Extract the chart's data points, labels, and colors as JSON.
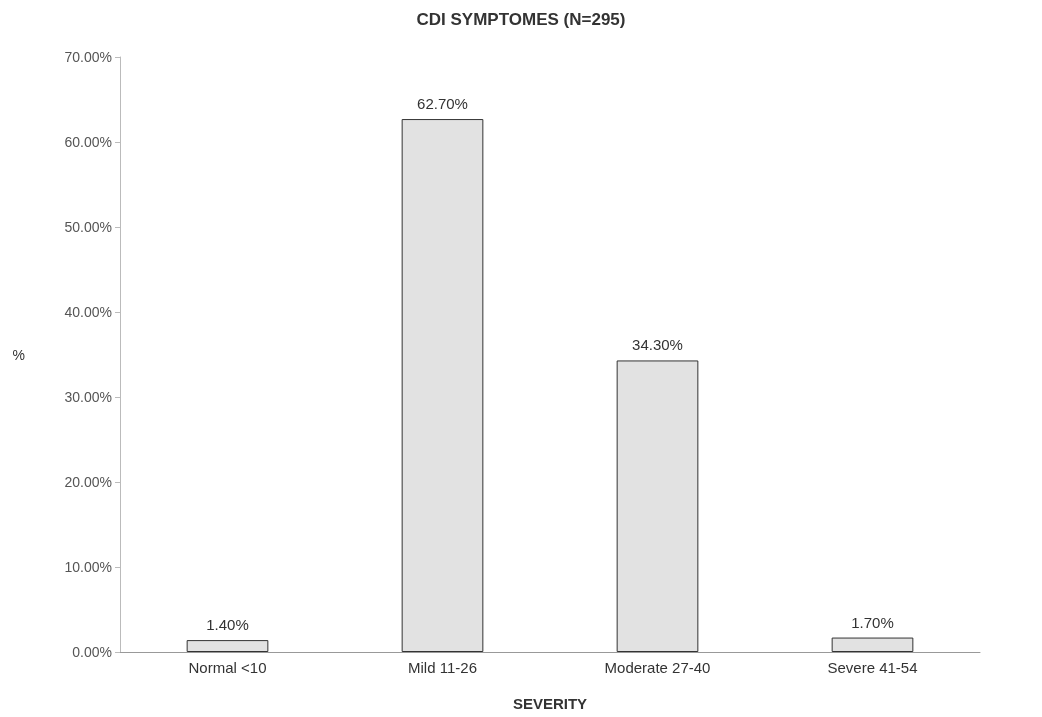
{
  "chart_data": {
    "type": "bar",
    "title": "CDI SYMPTOMES (N=295)",
    "xlabel": "SEVERITY",
    "ylabel": "%",
    "categories": [
      "Normal <10",
      "Mild 11-26",
      "Moderate 27-40",
      "Severe 41-54"
    ],
    "values": [
      1.4,
      62.7,
      34.3,
      1.7
    ],
    "color": "#e2e2e2",
    "value_labels": [
      "1.40%",
      "62.70%",
      "34.30%",
      "1.70%"
    ],
    "ylim": [
      0,
      70
    ],
    "yticks": [
      {
        "value": 0,
        "label": "0.00%"
      },
      {
        "value": 10,
        "label": "10.00%"
      },
      {
        "value": 20,
        "label": "20.00%"
      },
      {
        "value": 30,
        "label": "30.00%"
      },
      {
        "value": 40,
        "label": "40.00%"
      },
      {
        "value": 50,
        "label": "50.00%"
      },
      {
        "value": 60,
        "label": "60.00%"
      },
      {
        "value": 70,
        "label": "70.00%"
      }
    ],
    "grid": false
  }
}
